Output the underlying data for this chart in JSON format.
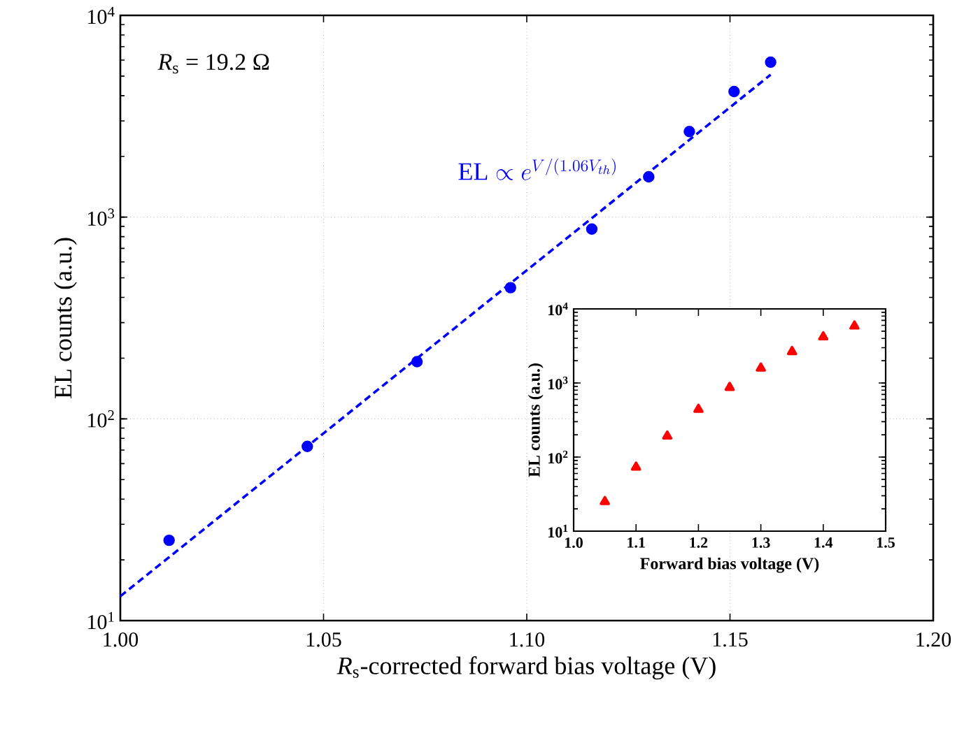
{
  "chart_data": [
    {
      "type": "scatter",
      "xlabel": "*R*$_{s}$-corrected forward bias voltage (V)",
      "ylabel": "EL counts (a.u.)",
      "log": "y",
      "grid": true,
      "xlim": [
        1.0,
        1.2
      ],
      "ylim": [
        10,
        10000
      ],
      "xticks": [
        {
          "value": 1.0,
          "label": "1.00"
        },
        {
          "value": 1.05,
          "label": "1.05"
        },
        {
          "value": 1.1,
          "label": "1.10"
        },
        {
          "value": 1.15,
          "label": "1.15"
        },
        {
          "value": 1.2,
          "label": "1.20"
        }
      ],
      "yticks": [
        {
          "value": 10,
          "label": "10$^{1}$"
        },
        {
          "value": 100,
          "label": "10$^{2}$"
        },
        {
          "value": 1000,
          "label": "10$^{3}$"
        },
        {
          "value": 10000,
          "label": "10$^{4}$"
        }
      ],
      "series": [
        {
          "color": "#0000ff",
          "marker": "circle",
          "x": [
            1.012,
            1.046,
            1.073,
            1.096,
            1.116,
            1.13,
            1.14,
            1.151,
            1.16
          ],
          "values": [
            25,
            73,
            192,
            447,
            873,
            1585,
            2655,
            4190,
            5860
          ]
        },
        {
          "type": "line",
          "name": "\\mathrm{EL}\\propto e^{V/(1.06V_{th})}",
          "color": "#0000ff",
          "line_style": "dashed",
          "marker": "none",
          "x": [
            1.0,
            1.16
          ],
          "values": [
            13.2,
            5080
          ]
        }
      ],
      "annotations": [
        "*R*$_{s}$ = 19.2 Ω"
      ]
    },
    {
      "type": "scatter",
      "xlabel": "Forward bias voltage (V)",
      "ylabel": "EL counts (a.u.)",
      "log": "y",
      "xlim": [
        1.0,
        1.5
      ],
      "ylim": [
        10,
        10000
      ],
      "xticks": [
        {
          "value": 1.0,
          "label": "1.0"
        },
        1.1,
        1.2,
        1.3,
        1.4,
        1.5
      ],
      "yticks": [
        {
          "value": 10,
          "label": "10$^{1}$"
        },
        {
          "value": 100,
          "label": "10$^{2}$"
        },
        {
          "value": 1000,
          "label": "10$^{3}$"
        },
        {
          "value": 10000,
          "label": "10$^{4}$"
        }
      ],
      "series": [
        {
          "color": "#ff0000",
          "marker": "triangle",
          "x": [
            1.05,
            1.1,
            1.15,
            1.2,
            1.25,
            1.3,
            1.35,
            1.4,
            1.45
          ],
          "values": [
            25,
            73,
            192,
            440,
            870,
            1585,
            2650,
            4190,
            5860
          ]
        }
      ]
    }
  ]
}
